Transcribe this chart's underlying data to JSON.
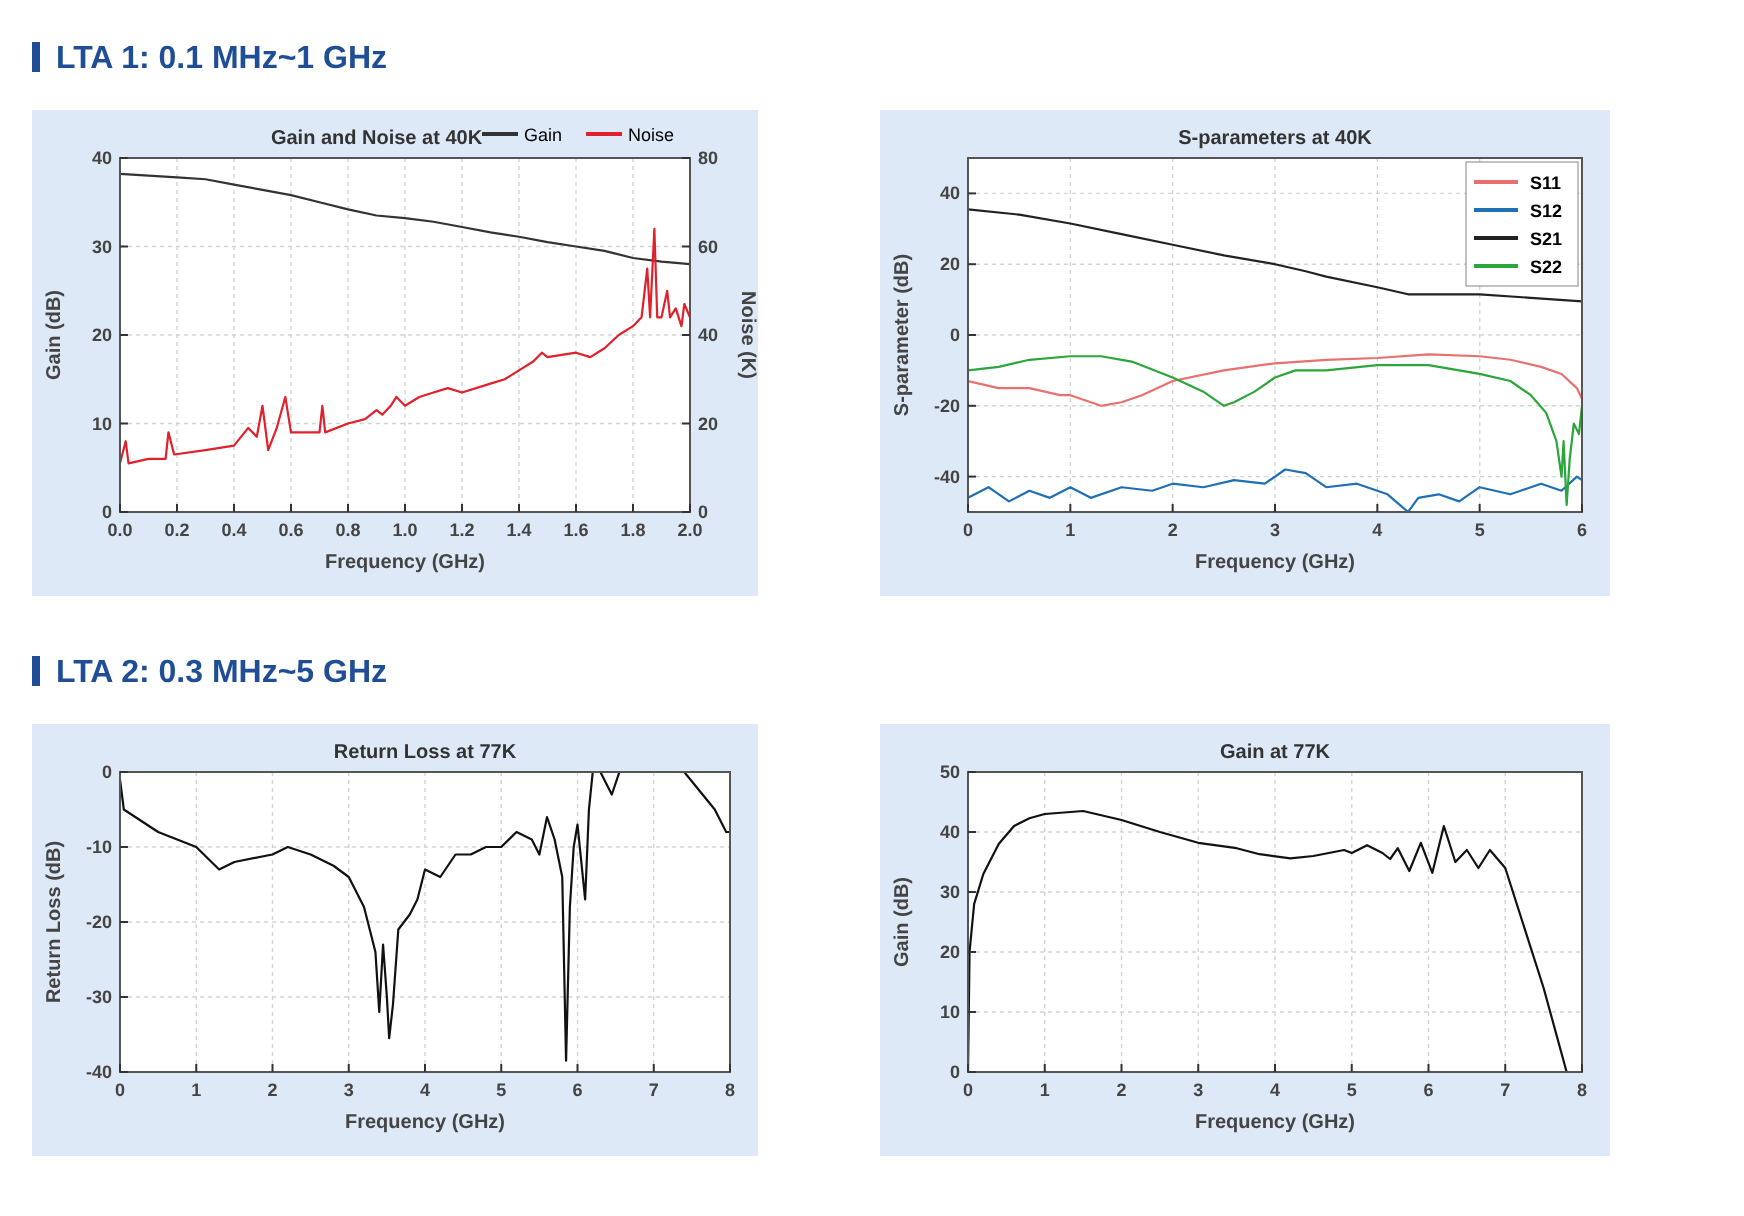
{
  "chart_data": [
    {
      "type": "line",
      "title": "Gain and Noise at 40K",
      "xlabel": "Frequency (GHz)",
      "ylabel": "Gain (dB)",
      "y2label": "Noise (K)",
      "annotations": [
        "LTA 1: 0.1 MHz~1 GHz"
      ],
      "legend": "top",
      "grid": true,
      "xlim": [
        0,
        2
      ],
      "xticks": [
        {
          "value": 0,
          "label": "0.0"
        },
        {
          "value": 0.2,
          "label": "0.2"
        },
        {
          "value": 0.4,
          "label": "0.4"
        },
        {
          "value": 0.6,
          "label": "0.6"
        },
        {
          "value": 0.8,
          "label": "0.8"
        },
        {
          "value": 1,
          "label": "1.0"
        },
        {
          "value": 1.2,
          "label": "1.2"
        },
        {
          "value": 1.4,
          "label": "1.4"
        },
        {
          "value": 1.6,
          "label": "1.6"
        },
        {
          "value": 1.8,
          "label": "1.8"
        },
        {
          "value": 2,
          "label": "2.0"
        }
      ],
      "ylim": [
        0,
        40
      ],
      "yticks": [
        0,
        10,
        20,
        30,
        40
      ],
      "y2lim": [
        0,
        80
      ],
      "y2ticks": [
        0,
        20,
        40,
        60,
        80
      ],
      "series": [
        {
          "name": "Gain",
          "color": "#333333",
          "x": [
            0,
            0.1,
            0.2,
            0.3,
            0.4,
            0.5,
            0.6,
            0.7,
            0.8,
            0.9,
            1.0,
            1.1,
            1.2,
            1.3,
            1.4,
            1.5,
            1.6,
            1.7,
            1.8,
            1.9,
            2.0
          ],
          "values": [
            38.2,
            38,
            37.8,
            37.6,
            37,
            36.4,
            35.8,
            35,
            34.2,
            33.5,
            33.2,
            32.8,
            32.2,
            31.6,
            31.1,
            30.5,
            30,
            29.5,
            28.7,
            28.3,
            28
          ]
        },
        {
          "name": "Noise",
          "color": "#e0202a",
          "axis": "y2",
          "x": [
            0,
            0.02,
            0.03,
            0.1,
            0.16,
            0.17,
            0.19,
            0.3,
            0.4,
            0.45,
            0.48,
            0.5,
            0.52,
            0.55,
            0.58,
            0.6,
            0.7,
            0.71,
            0.72,
            0.8,
            0.86,
            0.9,
            0.92,
            0.95,
            0.97,
            1.0,
            1.05,
            1.1,
            1.15,
            1.2,
            1.3,
            1.35,
            1.4,
            1.45,
            1.48,
            1.5,
            1.6,
            1.65,
            1.7,
            1.75,
            1.8,
            1.83,
            1.85,
            1.86,
            1.875,
            1.885,
            1.9,
            1.92,
            1.93,
            1.95,
            1.97,
            1.98,
            2.0
          ],
          "values": [
            11,
            16,
            11,
            12,
            12,
            18,
            13,
            14,
            15,
            19,
            17,
            24,
            14,
            19,
            26,
            18,
            18,
            24,
            18,
            20,
            21,
            23,
            22,
            24,
            26,
            24,
            26,
            27,
            28,
            27,
            29,
            30,
            32,
            34,
            36,
            35,
            36,
            35,
            37,
            40,
            42,
            44,
            55,
            44,
            64,
            44,
            44,
            50,
            44,
            46,
            42,
            47,
            44
          ]
        }
      ]
    },
    {
      "type": "line",
      "title": "S-parameters at 40K",
      "xlabel": "Frequency (GHz)",
      "ylabel": "S-parameter (dB)",
      "legend": "top right",
      "grid": true,
      "xlim": [
        0,
        6
      ],
      "xticks": [
        0,
        1,
        2,
        3,
        4,
        5,
        6
      ],
      "ylim": [
        -50,
        50
      ],
      "yticks": [
        -40,
        -20,
        0,
        20,
        40
      ],
      "series": [
        {
          "name": "S11",
          "color": "#e8706e",
          "x": [
            0,
            0.3,
            0.6,
            0.9,
            1,
            1.3,
            1.5,
            1.7,
            2,
            2.5,
            3,
            3.5,
            4,
            4.5,
            5,
            5.3,
            5.6,
            5.8,
            5.95,
            6
          ],
          "values": [
            -13,
            -15,
            -15,
            -17,
            -17,
            -20,
            -19,
            -17,
            -13,
            -10,
            -8,
            -7,
            -6.5,
            -5.5,
            -6,
            -7,
            -9,
            -11,
            -15,
            -18
          ]
        },
        {
          "name": "S12",
          "color": "#1f6fb4",
          "x": [
            0,
            0.2,
            0.4,
            0.6,
            0.8,
            1,
            1.2,
            1.5,
            1.8,
            2,
            2.3,
            2.6,
            2.9,
            3.1,
            3.3,
            3.5,
            3.8,
            4.1,
            4.3,
            4.4,
            4.6,
            4.8,
            5,
            5.3,
            5.6,
            5.8,
            5.95,
            6
          ],
          "values": [
            -46,
            -43,
            -47,
            -44,
            -46,
            -43,
            -46,
            -43,
            -44,
            -42,
            -43,
            -41,
            -42,
            -38,
            -39,
            -43,
            -42,
            -45,
            -50,
            -46,
            -45,
            -47,
            -43,
            -45,
            -42,
            -44,
            -40,
            -41
          ]
        },
        {
          "name": "S21",
          "color": "#222222",
          "x": [
            0,
            0.5,
            1,
            1.5,
            2,
            2.5,
            3,
            3.3,
            3.5,
            4,
            4.3,
            4.5,
            5,
            5.5,
            6
          ],
          "values": [
            35.5,
            34,
            31.5,
            28.5,
            25.5,
            22.5,
            20,
            18,
            16.5,
            13.5,
            11.5,
            11.5,
            11.5,
            10.5,
            9.5
          ]
        },
        {
          "name": "S22",
          "color": "#2ca53a",
          "x": [
            0,
            0.3,
            0.6,
            1,
            1.3,
            1.6,
            2,
            2.3,
            2.5,
            2.6,
            2.8,
            3,
            3.2,
            3.5,
            4,
            4.5,
            5,
            5.3,
            5.5,
            5.65,
            5.75,
            5.8,
            5.82,
            5.85,
            5.88,
            5.92,
            5.97,
            6
          ],
          "values": [
            -10,
            -9,
            -7,
            -6,
            -6,
            -7.5,
            -12,
            -16,
            -20,
            -19,
            -16,
            -12,
            -10,
            -10,
            -8.5,
            -8.5,
            -11,
            -13,
            -17,
            -22,
            -30,
            -40,
            -30,
            -48,
            -35,
            -25,
            -28,
            -20
          ]
        }
      ]
    },
    {
      "type": "line",
      "title": "Return Loss at 77K",
      "xlabel": "Frequency (GHz)",
      "ylabel": "Return Loss (dB)",
      "annotations": [
        "LTA 2: 0.3 MHz~5 GHz"
      ],
      "grid": true,
      "xlim": [
        0,
        8
      ],
      "xticks": [
        0,
        1,
        2,
        3,
        4,
        5,
        6,
        7,
        8
      ],
      "ylim": [
        -40,
        0
      ],
      "yticks": [
        -40,
        -30,
        -20,
        -10,
        0
      ],
      "series": [
        {
          "color": "#111111",
          "x": [
            0,
            0.05,
            0.5,
            1,
            1.3,
            1.5,
            2,
            2.2,
            2.5,
            2.8,
            3,
            3.2,
            3.35,
            3.4,
            3.45,
            3.5,
            3.53,
            3.58,
            3.65,
            3.8,
            3.9,
            4,
            4.2,
            4.4,
            4.6,
            4.8,
            5,
            5.2,
            5.4,
            5.5,
            5.6,
            5.7,
            5.8,
            5.85,
            5.9,
            5.95,
            6,
            6.05,
            6.1,
            6.15,
            6.2,
            6.25,
            6.3,
            6.45,
            6.55,
            7,
            7.4,
            7.6,
            7.8,
            7.9,
            7.95,
            8
          ],
          "values": [
            -1,
            -5,
            -8,
            -10,
            -13,
            -12,
            -11,
            -10,
            -11,
            -12.5,
            -14,
            -18,
            -24,
            -32,
            -23,
            -30,
            -35.5,
            -31,
            -21,
            -19,
            -17,
            -13,
            -14,
            -11,
            -11,
            -10,
            -10,
            -8,
            -9,
            -11,
            -6,
            -9,
            -14,
            -38.5,
            -18,
            -10,
            -7,
            -12,
            -17,
            -5,
            0,
            null,
            0,
            -3,
            0,
            null,
            0,
            -2.5,
            -5,
            -7,
            -8,
            -8
          ]
        }
      ]
    },
    {
      "type": "line",
      "title": "Gain at 77K",
      "xlabel": "Frequency (GHz)",
      "ylabel": "Gain (dB)",
      "grid": true,
      "xlim": [
        0,
        8
      ],
      "xticks": [
        0,
        1,
        2,
        3,
        4,
        5,
        6,
        7,
        8
      ],
      "ylim": [
        0,
        50
      ],
      "yticks": [
        0,
        10,
        20,
        30,
        40,
        50
      ],
      "series": [
        {
          "color": "#111111",
          "x": [
            0,
            0.02,
            0.08,
            0.2,
            0.4,
            0.6,
            0.8,
            1,
            1.5,
            2,
            2.5,
            3,
            3.5,
            3.8,
            4.2,
            4.5,
            4.9,
            5,
            5.2,
            5.4,
            5.5,
            5.6,
            5.75,
            5.9,
            6.05,
            6.2,
            6.35,
            6.5,
            6.65,
            6.8,
            7,
            7.2,
            7.5,
            7.8
          ],
          "values": [
            0,
            20,
            28,
            33,
            38,
            41,
            42.3,
            43,
            43.5,
            42,
            40,
            38.2,
            37.3,
            36.3,
            35.6,
            36,
            37,
            36.5,
            37.8,
            36.5,
            35.5,
            37.3,
            33.5,
            38.2,
            33.2,
            41,
            35,
            37,
            34,
            37,
            34,
            26,
            14,
            0
          ]
        }
      ]
    }
  ]
}
